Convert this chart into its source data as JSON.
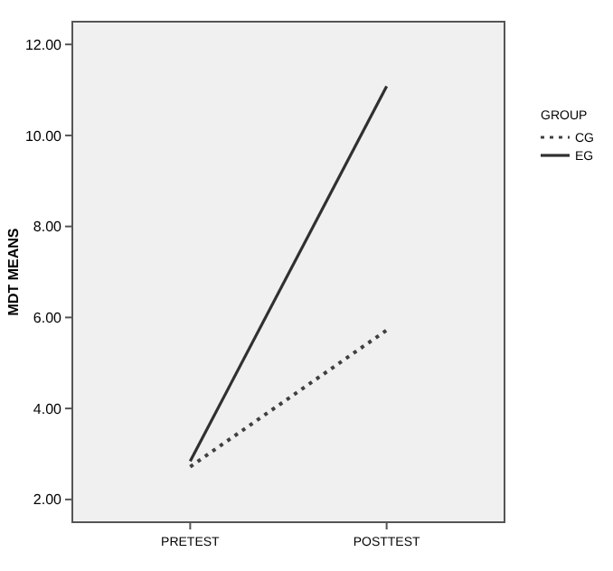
{
  "chart_data": {
    "type": "line",
    "ylabel": "MDT MEANS",
    "categories": [
      "PRETEST",
      "POSTTEST"
    ],
    "series": [
      {
        "name": "CG",
        "color": "#404040",
        "values": [
          2.72,
          5.72
        ],
        "line_style": "dotted"
      },
      {
        "name": "EG",
        "color": "#303030",
        "values": [
          2.84,
          11.08
        ],
        "line_style": "solid"
      }
    ],
    "legend_title": "GROUP",
    "legend": "right",
    "ylim": [
      1.5,
      12.5
    ],
    "yticks": [
      {
        "value": 2,
        "label": "2.00"
      },
      {
        "value": 4,
        "label": "4.00"
      },
      {
        "value": 6,
        "label": "6.00"
      },
      {
        "value": 8,
        "label": "8.00"
      },
      {
        "value": 10,
        "label": "10.00"
      },
      {
        "value": 12,
        "label": "12.00"
      }
    ],
    "grid": false
  }
}
